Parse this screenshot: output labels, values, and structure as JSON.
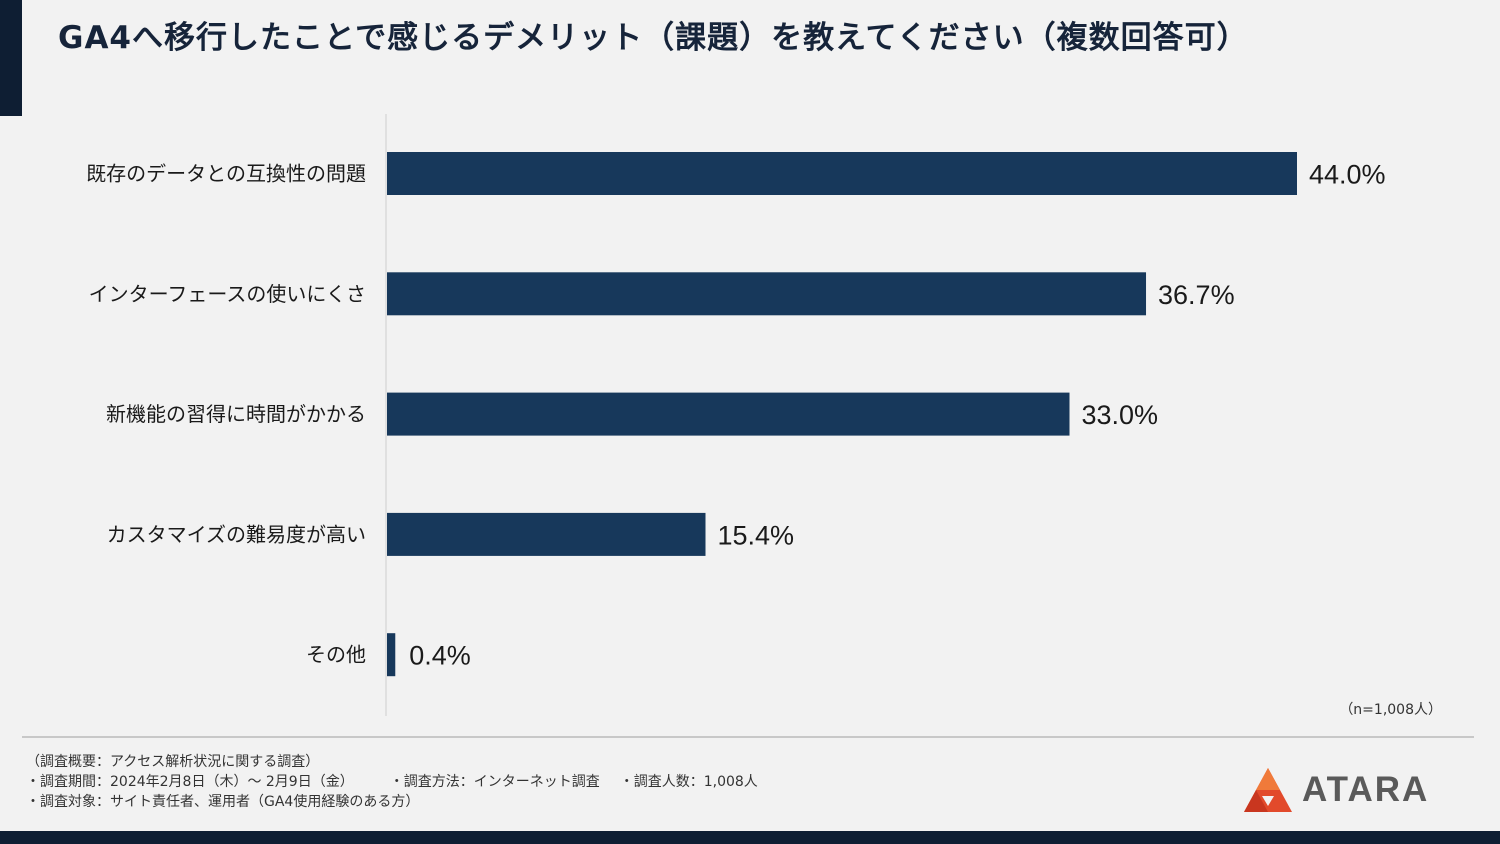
{
  "title": "GA4へ移行したことで感じるデメリット（課題）を教えてください（複数回答可）",
  "colors": {
    "bar": "#17385b",
    "accent": "#0e1e33",
    "logo_red": "#e24a2b"
  },
  "chart_data": {
    "type": "bar",
    "orientation": "horizontal",
    "categories": [
      "既存のデータとの互換性の問題",
      "インターフェースの使いにくさ",
      "新機能の習得に時間がかかる",
      "カスタマイズの難易度が高い",
      "その他"
    ],
    "values": [
      44.0,
      36.7,
      33.0,
      15.4,
      0.4
    ],
    "value_labels": [
      "44.0%",
      "36.7%",
      "33.0%",
      "15.4%",
      "0.4%"
    ],
    "unit": "%",
    "xlim": [
      0,
      44.0
    ],
    "grid": false,
    "legend": "none"
  },
  "sample_size": "（n=1,008人）",
  "notes": {
    "overview": "（調査概要：アクセス解析状況に関する調査）",
    "period": "・調査期間：2024年2月8日（木）～ 2月9日（金）",
    "method": "・調査方法：インターネット調査",
    "count": "・調査人数：1,008人",
    "target": "・調査対象：サイト責任者、運用者（GA4使用経験のある方）"
  },
  "logo": {
    "text": "ATARA",
    "icon": "atara-logo-icon"
  }
}
